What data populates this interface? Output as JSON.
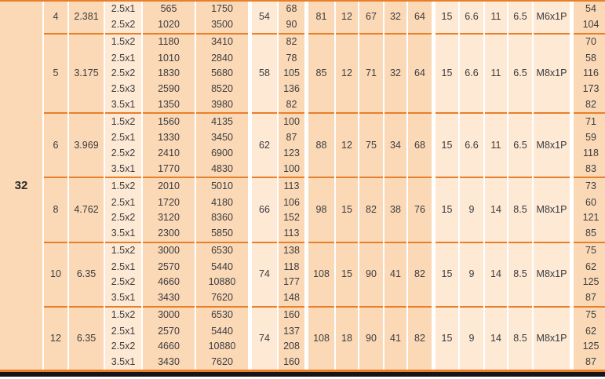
{
  "table": {
    "row_group_label": "32",
    "colors": {
      "cell_dark": "#fbd9b6",
      "cell_light": "#fde9d4",
      "line_orange": "#e87f2b",
      "separator_white": "#ffffff",
      "bottom_strip_black": "#151517",
      "text": "#3c3c3f"
    },
    "blocks": [
      {
        "size": "4",
        "pitch_dia": "2.381",
        "rows": [
          [
            "2.5x1",
            "565",
            "1750",
            "68",
            "54"
          ],
          [
            "2.5x2",
            "1020",
            "3500",
            "90",
            "104"
          ]
        ],
        "span": [
          "54",
          "81",
          "12",
          "67",
          "32",
          "64",
          "15",
          "6.6",
          "11",
          "6.5",
          "M6x1P"
        ]
      },
      {
        "size": "5",
        "pitch_dia": "3.175",
        "rows": [
          [
            "1.5x2",
            "1180",
            "3410",
            "82",
            "70"
          ],
          [
            "2.5x1",
            "1010",
            "2840",
            "78",
            "58"
          ],
          [
            "2.5x2",
            "1830",
            "5680",
            "105",
            "116"
          ],
          [
            "2.5x3",
            "2590",
            "8520",
            "136",
            "173"
          ],
          [
            "3.5x1",
            "1350",
            "3980",
            "82",
            "82"
          ]
        ],
        "span": [
          "58",
          "85",
          "12",
          "71",
          "32",
          "64",
          "15",
          "6.6",
          "11",
          "6.5",
          "M8x1P"
        ]
      },
      {
        "size": "6",
        "pitch_dia": "3.969",
        "rows": [
          [
            "1.5x2",
            "1560",
            "4135",
            "100",
            "71"
          ],
          [
            "2.5x1",
            "1330",
            "3450",
            "87",
            "59"
          ],
          [
            "2.5x2",
            "2410",
            "6900",
            "123",
            "118"
          ],
          [
            "3.5x1",
            "1770",
            "4830",
            "100",
            "83"
          ]
        ],
        "span": [
          "62",
          "88",
          "12",
          "75",
          "34",
          "68",
          "15",
          "6.6",
          "11",
          "6.5",
          "M8x1P"
        ]
      },
      {
        "size": "8",
        "pitch_dia": "4.762",
        "rows": [
          [
            "1.5x2",
            "2010",
            "5010",
            "113",
            "73"
          ],
          [
            "2.5x1",
            "1720",
            "4180",
            "106",
            "60"
          ],
          [
            "2.5x2",
            "3120",
            "8360",
            "152",
            "121"
          ],
          [
            "3.5x1",
            "2300",
            "5850",
            "113",
            "85"
          ]
        ],
        "span": [
          "66",
          "98",
          "15",
          "82",
          "38",
          "76",
          "15",
          "9",
          "14",
          "8.5",
          "M8x1P"
        ]
      },
      {
        "size": "10",
        "pitch_dia": "6.35",
        "rows": [
          [
            "1.5x2",
            "3000",
            "6530",
            "138",
            "75"
          ],
          [
            "2.5x1",
            "2570",
            "5440",
            "118",
            "62"
          ],
          [
            "2.5x2",
            "4660",
            "10880",
            "177",
            "125"
          ],
          [
            "3.5x1",
            "3430",
            "7620",
            "148",
            "87"
          ]
        ],
        "span": [
          "74",
          "108",
          "15",
          "90",
          "41",
          "82",
          "15",
          "9",
          "14",
          "8.5",
          "M8x1P"
        ]
      },
      {
        "size": "12",
        "pitch_dia": "6.35",
        "rows": [
          [
            "1.5x2",
            "3000",
            "6530",
            "160",
            "75"
          ],
          [
            "2.5x1",
            "2570",
            "5440",
            "137",
            "62"
          ],
          [
            "2.5x2",
            "4660",
            "10880",
            "208",
            "125"
          ],
          [
            "3.5x1",
            "3430",
            "7620",
            "160",
            "87"
          ]
        ],
        "span": [
          "74",
          "108",
          "18",
          "90",
          "41",
          "82",
          "15",
          "9",
          "14",
          "8.5",
          "M8x1P"
        ]
      }
    ]
  }
}
